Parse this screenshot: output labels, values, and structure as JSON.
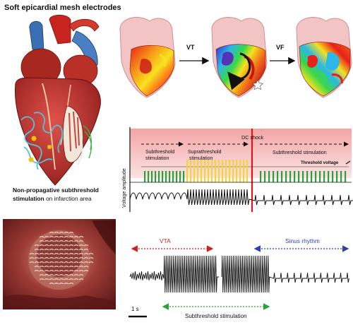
{
  "title": "Soft epicardial mesh electrodes",
  "caption": {
    "bold": "Non-propagative subthreshold stimulation",
    "rest": " on infarction area"
  },
  "heart_maps": {
    "arrow1_label": "VT",
    "arrow2_label": "VF"
  },
  "protocol": {
    "dc_shock": "DC shock",
    "y_axis": "Voltage amplitude",
    "phase1": "Subthreshold\nstimulation",
    "phase2": "Suprathreshold\nstimulation",
    "phase3": "Subthreshold stimulation",
    "threshold": "Threshold voltage"
  },
  "ecg": {
    "vta": "VTA",
    "sinus": "Sinus rhythm",
    "scale": "1 s",
    "sub": "Subthreshold stimulation"
  },
  "colors": {
    "pink_band": "#f7c5c5",
    "red_line": "#d8191e",
    "green_pulse": "#2aa13a",
    "yellow_pulse": "#f3d43a",
    "vta_red": "#d0231c",
    "sinus_blue": "#2c3fb8",
    "green_arrow": "#2aa13a"
  }
}
